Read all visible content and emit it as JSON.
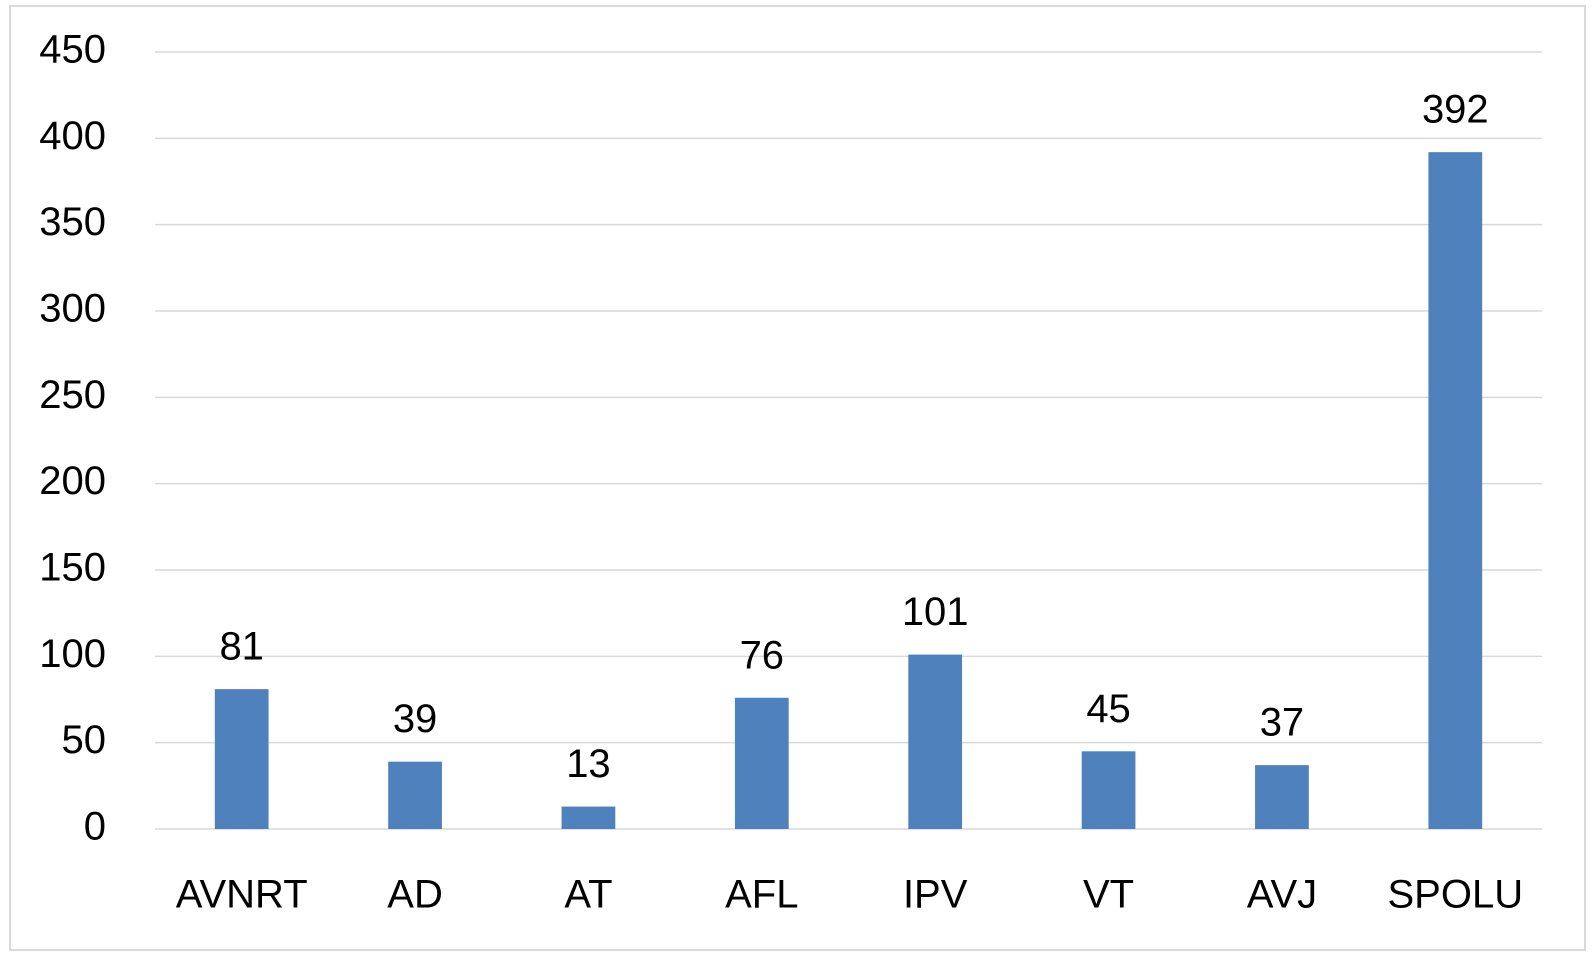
{
  "chart_data": {
    "type": "bar",
    "categories": [
      "AVNRT",
      "AD",
      "AT",
      "AFL",
      "IPV",
      "VT",
      "AVJ",
      "SPOLU"
    ],
    "values": [
      81,
      39,
      13,
      76,
      101,
      45,
      37,
      392
    ],
    "color": "#4f81bd",
    "ylim": [
      0,
      450
    ],
    "yticks": [
      0,
      50,
      100,
      150,
      200,
      250,
      300,
      350,
      400,
      450
    ],
    "grid": true,
    "data_labels": true
  }
}
